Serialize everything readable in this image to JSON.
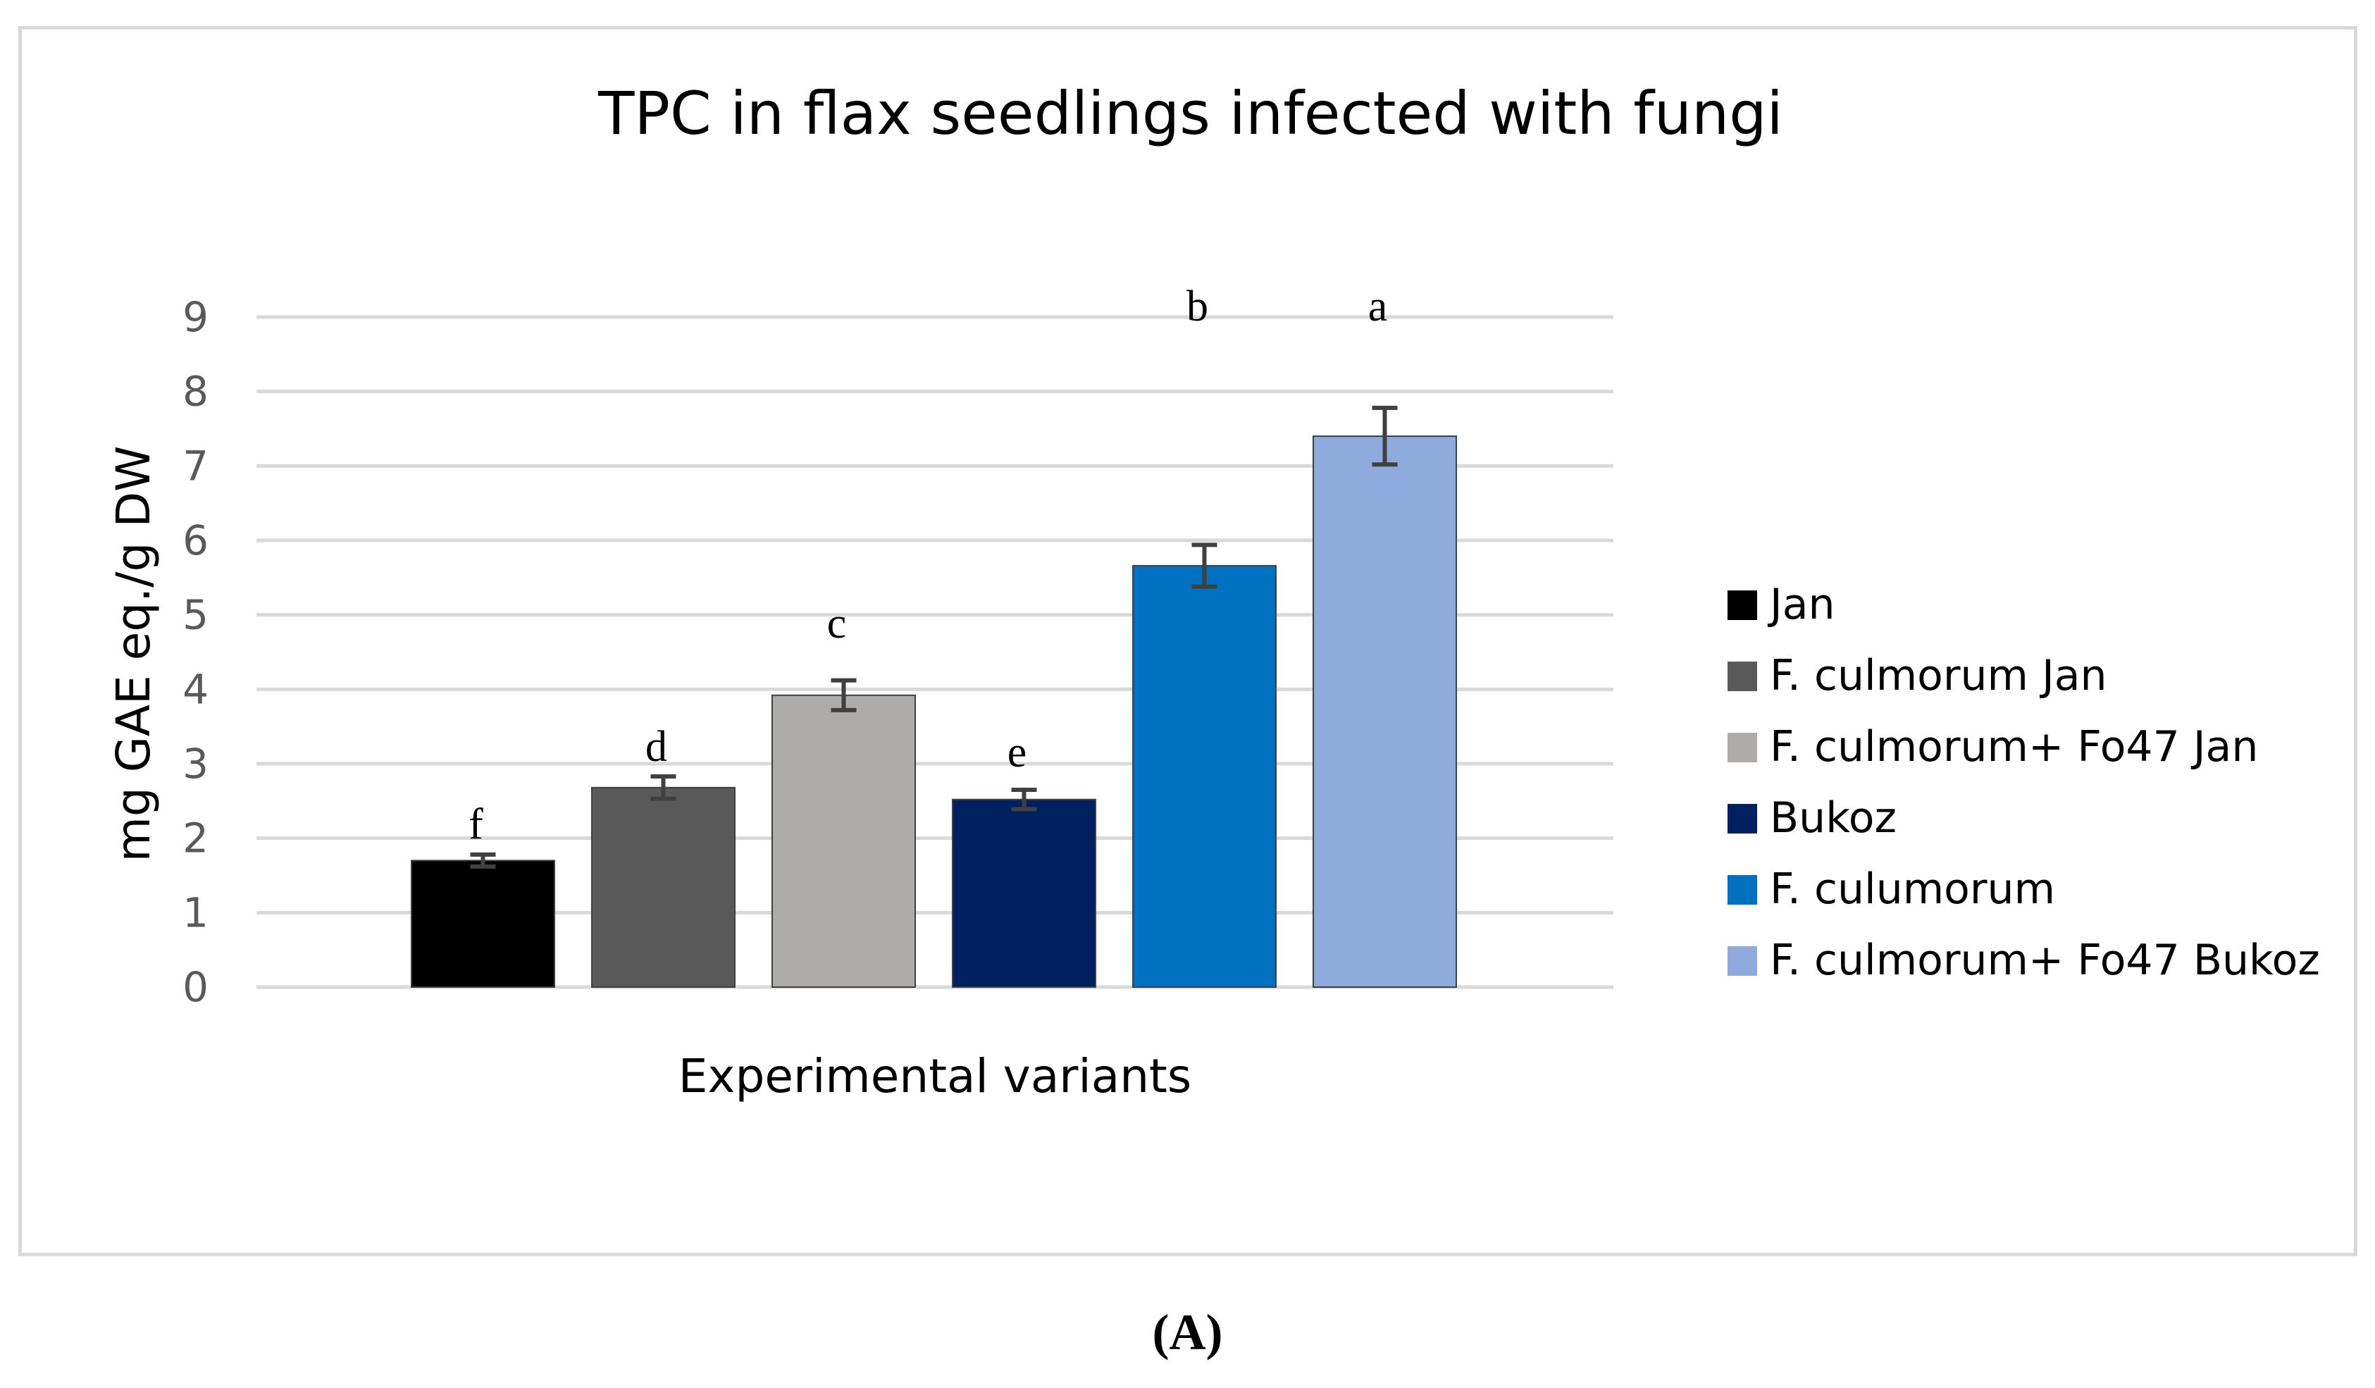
{
  "figure": {
    "panel_label": "(A)"
  },
  "chart_data": {
    "type": "bar",
    "title": "TPC in flax seedlings infected with fungi",
    "xlabel": "Experimental variants",
    "ylabel": "mg GAE eq./g DW",
    "ylim": [
      0,
      9
    ],
    "yticks": [
      0,
      1,
      2,
      3,
      4,
      5,
      6,
      7,
      8,
      9
    ],
    "grid": true,
    "legend_position": "right",
    "series": [
      {
        "name": "Jan",
        "value": 1.7,
        "error": 0.08,
        "significance": "f",
        "color": "#000000"
      },
      {
        "name": "F. culmorum Jan",
        "value": 2.68,
        "error": 0.15,
        "significance": "d",
        "color": "#595959"
      },
      {
        "name": "F. culmorum+ Fo47 Jan",
        "value": 3.92,
        "error": 0.2,
        "significance": "c",
        "color": "#aeabab"
      },
      {
        "name": "Bukoz",
        "value": 2.52,
        "error": 0.13,
        "significance": "e",
        "color": "#002060"
      },
      {
        "name": "F. culumorum",
        "value": 5.66,
        "error": 0.28,
        "significance": "b",
        "color": "#0070c0"
      },
      {
        "name": "F. culmorum+ Fo47 Bukoz",
        "value": 7.4,
        "error": 0.38,
        "significance": "a",
        "color": "#8faadc"
      }
    ]
  }
}
